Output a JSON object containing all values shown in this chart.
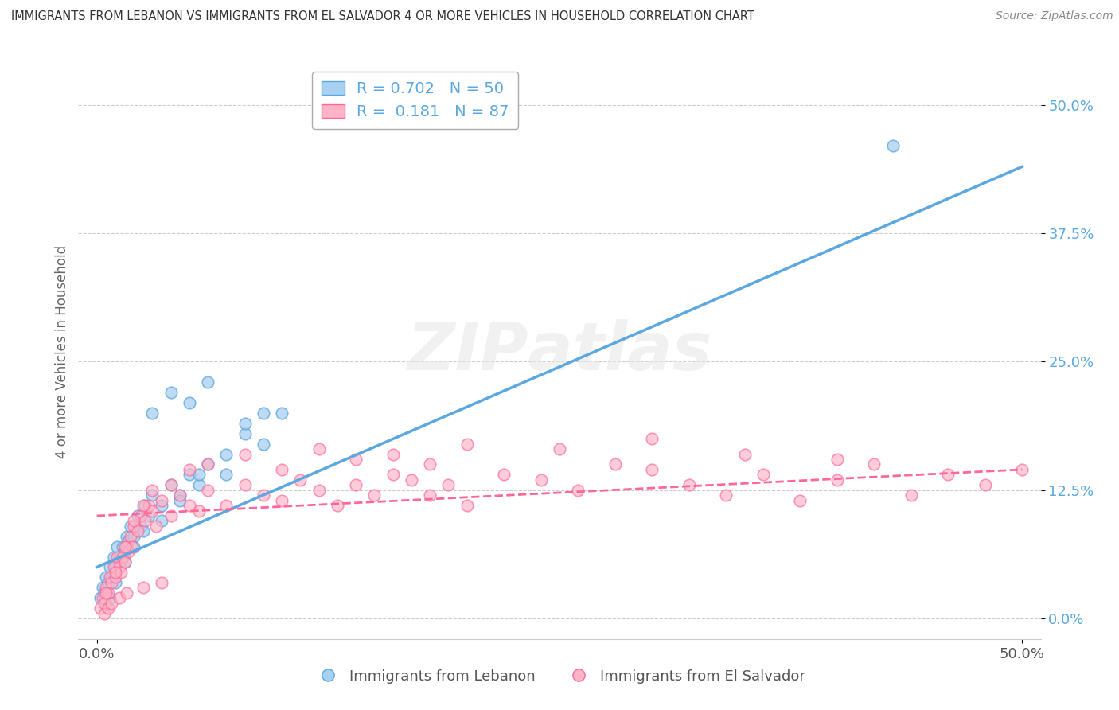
{
  "title": "IMMIGRANTS FROM LEBANON VS IMMIGRANTS FROM EL SALVADOR 4 OR MORE VEHICLES IN HOUSEHOLD CORRELATION CHART",
  "source": "Source: ZipAtlas.com",
  "ylabel": "4 or more Vehicles in Household",
  "xlim": [
    0.0,
    50.0
  ],
  "ylim": [
    -2.0,
    54.0
  ],
  "yticks": [
    0.0,
    12.5,
    25.0,
    37.5,
    50.0
  ],
  "watermark": "ZIPAtlas",
  "legend_R1": "R = 0.702",
  "legend_N1": "N = 50",
  "legend_R2": "R =  0.181",
  "legend_N2": "N = 87",
  "color_lebanon": "#a8d0f0",
  "color_salvador": "#ffb3c6",
  "line_color_lebanon": "#5ba8e0",
  "line_color_salvador": "#ff6699",
  "background_color": "#ffffff",
  "grid_color": "#cccccc",
  "lebanon_x": [
    0.2,
    0.3,
    0.4,
    0.5,
    0.6,
    0.7,
    0.8,
    0.9,
    1.0,
    1.1,
    1.2,
    1.3,
    1.4,
    1.5,
    1.6,
    1.7,
    1.8,
    2.0,
    2.2,
    2.4,
    2.6,
    2.8,
    3.0,
    3.5,
    4.0,
    4.5,
    5.0,
    5.5,
    6.0,
    7.0,
    8.0,
    9.0,
    3.0,
    4.0,
    5.0,
    6.0,
    7.0,
    8.0,
    9.0,
    10.0,
    0.5,
    0.7,
    1.0,
    1.5,
    2.0,
    2.5,
    3.5,
    4.5,
    5.5,
    43.0
  ],
  "lebanon_y": [
    2.0,
    3.0,
    2.5,
    4.0,
    3.5,
    5.0,
    4.0,
    6.0,
    5.0,
    7.0,
    6.0,
    5.5,
    7.0,
    6.5,
    8.0,
    7.5,
    9.0,
    8.0,
    10.0,
    9.0,
    11.0,
    10.0,
    12.0,
    11.0,
    13.0,
    12.0,
    14.0,
    13.0,
    15.0,
    14.0,
    18.0,
    20.0,
    20.0,
    22.0,
    21.0,
    23.0,
    16.0,
    19.0,
    17.0,
    20.0,
    1.5,
    2.0,
    3.5,
    5.5,
    7.0,
    8.5,
    9.5,
    11.5,
    14.0,
    46.0
  ],
  "salvador_x": [
    0.2,
    0.3,
    0.4,
    0.5,
    0.6,
    0.7,
    0.8,
    0.9,
    1.0,
    1.1,
    1.2,
    1.3,
    1.4,
    1.5,
    1.6,
    1.7,
    1.8,
    1.9,
    2.0,
    2.2,
    2.4,
    2.6,
    2.8,
    3.0,
    3.2,
    3.5,
    4.0,
    4.5,
    5.0,
    5.5,
    6.0,
    7.0,
    8.0,
    9.0,
    10.0,
    11.0,
    12.0,
    13.0,
    14.0,
    15.0,
    16.0,
    17.0,
    18.0,
    19.0,
    20.0,
    22.0,
    24.0,
    26.0,
    28.0,
    30.0,
    32.0,
    34.0,
    36.0,
    38.0,
    40.0,
    42.0,
    44.0,
    46.0,
    48.0,
    50.0,
    0.5,
    1.0,
    1.5,
    2.0,
    2.5,
    3.0,
    4.0,
    5.0,
    6.0,
    8.0,
    10.0,
    12.0,
    14.0,
    16.0,
    18.0,
    20.0,
    25.0,
    30.0,
    35.0,
    40.0,
    0.4,
    0.6,
    0.8,
    1.2,
    1.6,
    2.5,
    3.5
  ],
  "salvador_y": [
    1.0,
    2.0,
    1.5,
    3.0,
    2.5,
    4.0,
    3.5,
    5.0,
    4.0,
    6.0,
    5.0,
    4.5,
    6.0,
    5.5,
    7.0,
    6.5,
    8.0,
    7.0,
    9.0,
    8.5,
    10.0,
    9.5,
    11.0,
    10.5,
    9.0,
    11.5,
    10.0,
    12.0,
    11.0,
    10.5,
    12.5,
    11.0,
    13.0,
    12.0,
    11.5,
    13.5,
    12.5,
    11.0,
    13.0,
    12.0,
    14.0,
    13.5,
    12.0,
    13.0,
    11.0,
    14.0,
    13.5,
    12.5,
    15.0,
    14.5,
    13.0,
    12.0,
    14.0,
    11.5,
    13.5,
    15.0,
    12.0,
    14.0,
    13.0,
    14.5,
    2.5,
    4.5,
    7.0,
    9.5,
    11.0,
    12.5,
    13.0,
    14.5,
    15.0,
    16.0,
    14.5,
    16.5,
    15.5,
    16.0,
    15.0,
    17.0,
    16.5,
    17.5,
    16.0,
    15.5,
    0.5,
    1.0,
    1.5,
    2.0,
    2.5,
    3.0,
    3.5
  ]
}
